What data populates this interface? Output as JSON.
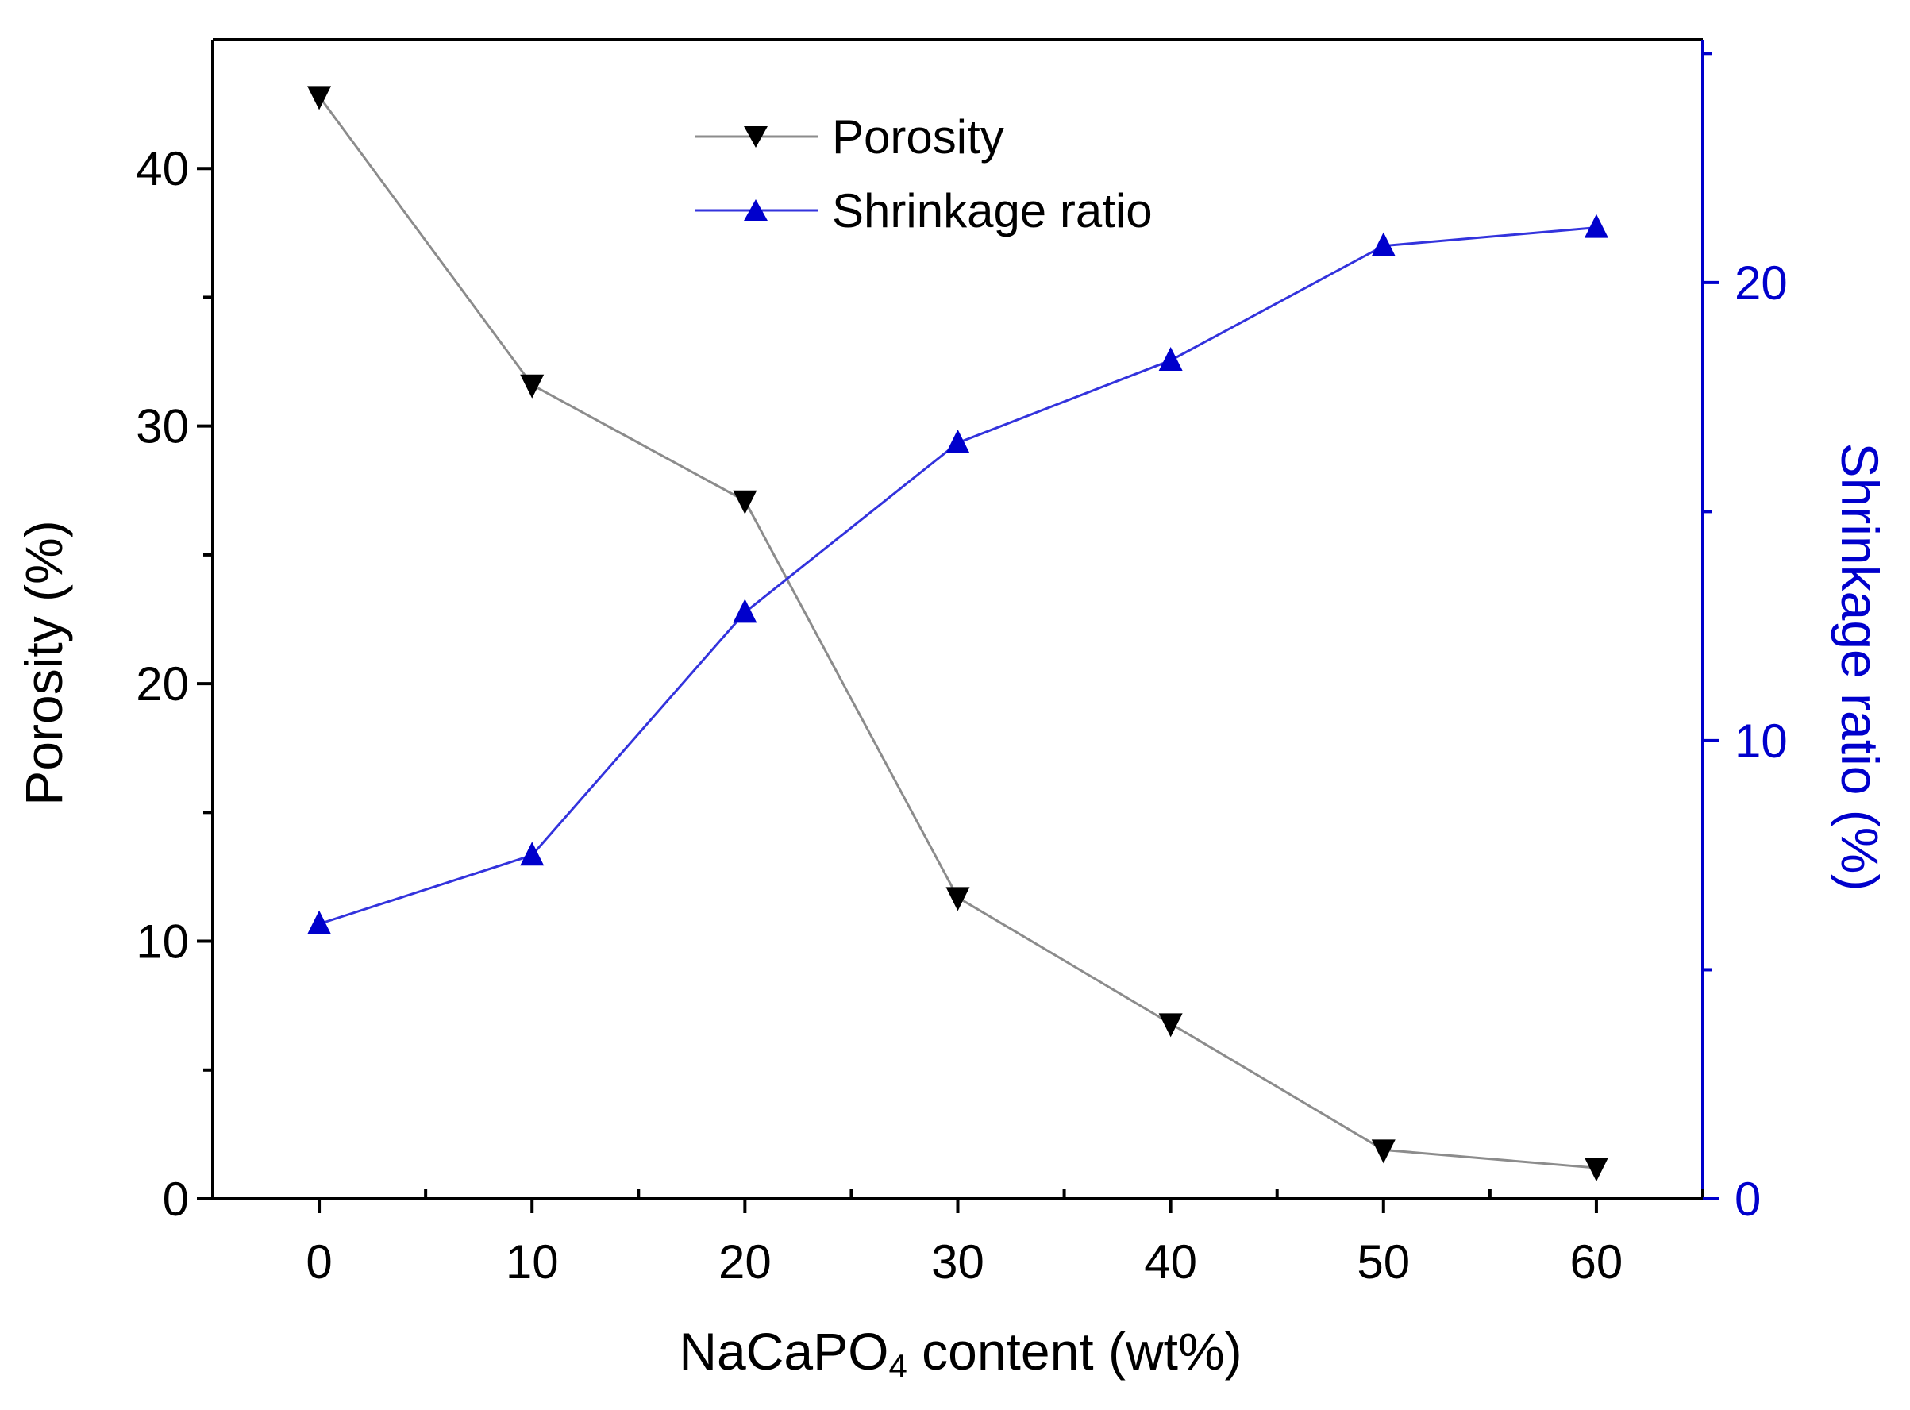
{
  "chart_data": {
    "type": "line",
    "x": [
      0,
      10,
      20,
      30,
      40,
      50,
      60
    ],
    "xlabel_main": "NaCaPO",
    "xlabel_sub": "4",
    "xlabel_rest": " content (wt%)",
    "xticks": [
      0,
      10,
      20,
      30,
      40,
      50,
      60
    ],
    "xtick_labels": [
      "0",
      "10",
      "20",
      "30",
      "40",
      "50",
      "60"
    ],
    "xlim": [
      -5,
      65
    ],
    "ylabel_left": "Porosity (%)",
    "ylim_left": [
      0,
      45
    ],
    "yticks_left": [
      0,
      10,
      20,
      30,
      40
    ],
    "ytick_labels_left": [
      "0",
      "10",
      "20",
      "30",
      "40"
    ],
    "ylabel_right": "Shrinkage ratio (%)",
    "ylim_right": [
      0,
      25.3
    ],
    "yticks_right": [
      0,
      10,
      20
    ],
    "ytick_labels_right": [
      "0",
      "10",
      "20"
    ],
    "series": [
      {
        "name": "Porosity",
        "axis": "left",
        "marker": "triangle-down",
        "line_color": "#8c8c8c",
        "marker_color": "#000000",
        "values": [
          42.8,
          31.6,
          27.1,
          11.7,
          6.8,
          1.9,
          1.2
        ]
      },
      {
        "name": "Shrinkage ratio",
        "axis": "right",
        "marker": "triangle-up",
        "line_color": "#3333dd",
        "marker_color": "#0000cc",
        "values": [
          6.0,
          7.5,
          12.8,
          16.5,
          18.3,
          20.8,
          21.2
        ]
      }
    ],
    "legend": [
      {
        "label": "Porosity"
      },
      {
        "label": "Shrinkage ratio"
      }
    ],
    "left_axis_color": "#000000",
    "right_axis_color": "#0000cc"
  }
}
